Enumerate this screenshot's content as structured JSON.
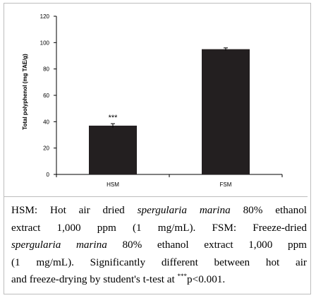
{
  "chart_data": {
    "type": "bar",
    "categories": [
      "HSM",
      "FSM"
    ],
    "values": [
      37,
      95
    ],
    "error": [
      1.5,
      1.0
    ],
    "annotations": [
      "***",
      ""
    ],
    "ylabel": "Total polyphenol  (mg TAE/g)",
    "ylim": [
      0,
      120
    ],
    "yticks": [
      0,
      20,
      40,
      60,
      80,
      100,
      120
    ],
    "grid": false,
    "bar_color": "#231f20"
  },
  "caption": {
    "l1_a": "HSM: Hot air dried ",
    "l1_b": "spergularia marina",
    "l1_c": " 80% ethanol",
    "l2": "extract 1,000 ppm (1 mg/mL). FSM: Freeze-dried",
    "l3_a": "spergularia marina",
    "l3_b": " 80% ethanol extract 1,000 ppm",
    "l4": "(1 mg/mL). Significantly different between hot air",
    "l5_a": "and freeze-drying by student's t-test at ",
    "l5_sup": "***",
    "l5_b": "p<0.001."
  }
}
